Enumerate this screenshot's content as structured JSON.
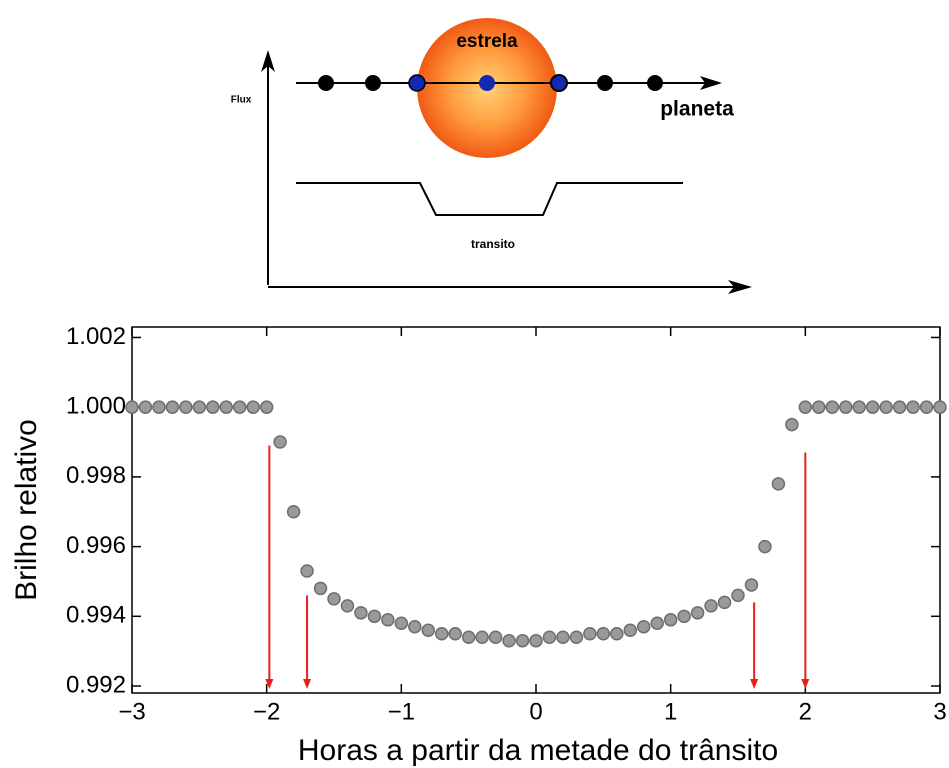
{
  "diagram": {
    "star_label": "estrela",
    "planet_label": "planeta",
    "y_label": "Flux",
    "curve_label": "transito"
  },
  "chart_data": {
    "type": "scatter",
    "x_label": "Horas a partir da metade do trânsito",
    "y_label": "Brilho relativo",
    "x": [
      -3.0,
      -2.9,
      -2.8,
      -2.7,
      -2.6,
      -2.5,
      -2.4,
      -2.3,
      -2.2,
      -2.1,
      -2.0,
      -1.9,
      -1.8,
      -1.7,
      -1.6,
      -1.5,
      -1.4,
      -1.3,
      -1.2,
      -1.1,
      -1.0,
      -0.9,
      -0.8,
      -0.7,
      -0.6,
      -0.5,
      -0.4,
      -0.3,
      -0.2,
      -0.1,
      0.0,
      0.1,
      0.2,
      0.3,
      0.4,
      0.5,
      0.6,
      0.7,
      0.8,
      0.9,
      1.0,
      1.1,
      1.2,
      1.3,
      1.4,
      1.5,
      1.6,
      1.7,
      1.8,
      1.9,
      2.0,
      2.1,
      2.2,
      2.3,
      2.4,
      2.5,
      2.6,
      2.7,
      2.8,
      2.9,
      3.0
    ],
    "series": [
      {
        "color": "#9a9a9a",
        "values": [
          1.0,
          1.0,
          1.0,
          1.0,
          1.0,
          1.0,
          1.0,
          1.0,
          1.0,
          1.0,
          1.0,
          0.999,
          0.997,
          0.9953,
          0.9948,
          0.9945,
          0.9943,
          0.9941,
          0.994,
          0.9939,
          0.9938,
          0.9937,
          0.9936,
          0.9935,
          0.9935,
          0.9934,
          0.9934,
          0.9934,
          0.9933,
          0.9933,
          0.9933,
          0.9934,
          0.9934,
          0.9934,
          0.9935,
          0.9935,
          0.9935,
          0.9936,
          0.9937,
          0.9938,
          0.9939,
          0.994,
          0.9941,
          0.9943,
          0.9944,
          0.9946,
          0.9949,
          0.996,
          0.9978,
          0.9995,
          1.0,
          1.0,
          1.0,
          1.0,
          1.0,
          1.0,
          1.0,
          1.0,
          1.0,
          1.0,
          1.0
        ]
      }
    ],
    "arrows": {
      "color": "#e8201a",
      "x": [
        -1.98,
        -1.7,
        1.62,
        2.0
      ],
      "y_top": [
        0.9989,
        0.9946,
        0.9944,
        0.9987
      ]
    },
    "xlim": [
      -3,
      3
    ],
    "xticks": [
      {
        "value": -3,
        "label": "−3"
      },
      {
        "value": -2,
        "label": "−2"
      },
      {
        "value": -1,
        "label": "−1"
      },
      0,
      1,
      2,
      3
    ],
    "ylim": [
      0.9918,
      1.0023
    ],
    "yticks": [
      0.992,
      0.994,
      0.996,
      0.998,
      {
        "value": 1.0,
        "label": "1.000"
      },
      1.002
    ]
  }
}
